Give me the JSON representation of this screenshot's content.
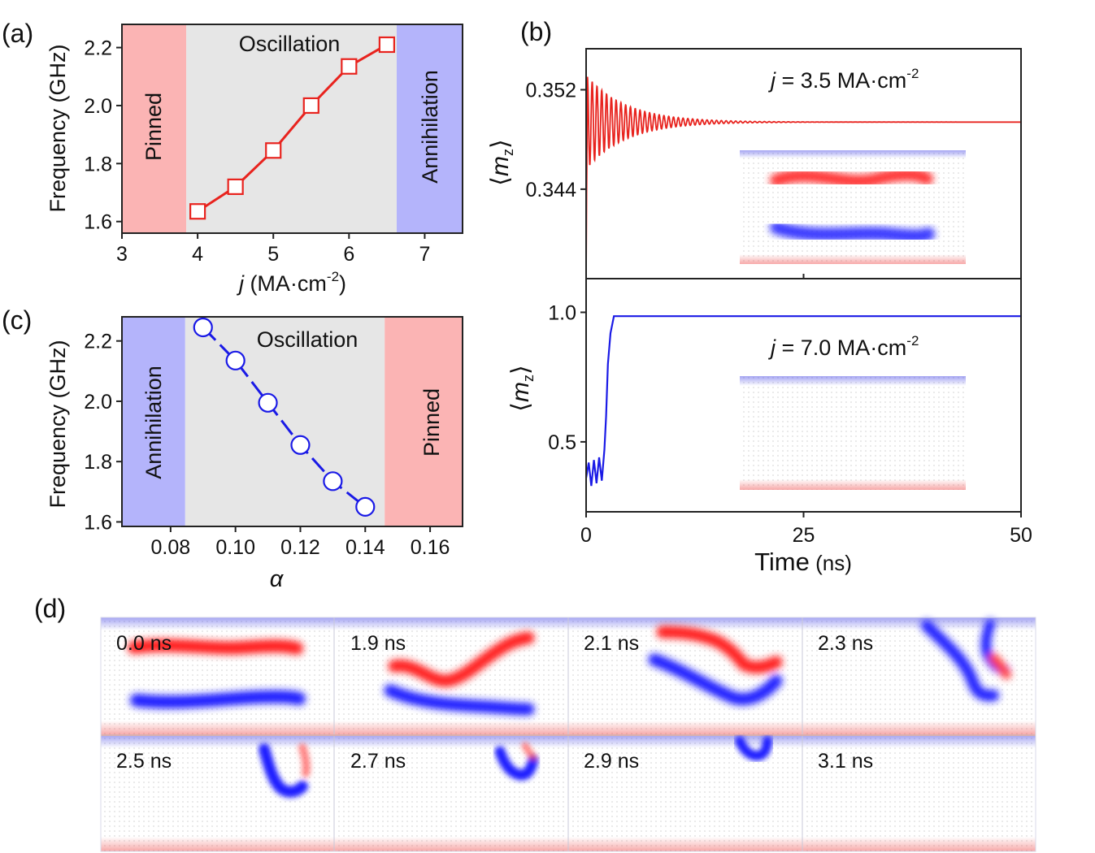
{
  "panels": {
    "a": "(a)",
    "b": "(b)",
    "c": "(c)",
    "d": "(d)"
  },
  "colors": {
    "red": "#e8231e",
    "blue": "#1a1ae6",
    "pinned": "#fbb4b4",
    "annihilation": "#b4b4fb",
    "oscillation": "#e6e6e6"
  },
  "chart_data": [
    {
      "id": "a",
      "type": "line",
      "xlabel_prefix": "j",
      "xlabel_suffix": " (MA·cm",
      "xlabel_exp": "-2",
      "xlabel_close": ")",
      "ylabel": "Frequency (GHz)",
      "x": [
        4,
        4.5,
        5,
        5.5,
        6,
        6.5
      ],
      "y": [
        1.635,
        1.72,
        1.845,
        2.0,
        2.135,
        2.21
      ],
      "xlim": [
        3,
        7.5
      ],
      "ylim": [
        1.56,
        2.28
      ],
      "xticks": [
        "3",
        "4",
        "5",
        "6",
        "7"
      ],
      "yticks": [
        "1.6",
        "1.8",
        "2.0",
        "2.2"
      ],
      "regions": [
        {
          "label": "Pinned",
          "from": 3,
          "to": 3.85
        },
        {
          "label": "Oscillation",
          "from": 3.85,
          "to": 6.63
        },
        {
          "label": "Annihilation",
          "from": 6.63,
          "to": 7.5
        }
      ],
      "marker": "square",
      "color": "red"
    },
    {
      "id": "c",
      "type": "line",
      "xlabel": "α",
      "ylabel": "Frequency (GHz)",
      "x": [
        0.09,
        0.1,
        0.11,
        0.12,
        0.13,
        0.14
      ],
      "y": [
        2.245,
        2.135,
        1.995,
        1.855,
        1.735,
        1.65
      ],
      "xlim": [
        0.065,
        0.17
      ],
      "ylim": [
        1.585,
        2.28
      ],
      "xticks": [
        "0.08",
        "0.10",
        "0.12",
        "0.14",
        "0.16"
      ],
      "yticks": [
        "1.6",
        "1.8",
        "2.0",
        "2.2"
      ],
      "regions": [
        {
          "label": "Annihilation",
          "from": 0.065,
          "to": 0.0845
        },
        {
          "label": "Oscillation",
          "from": 0.0845,
          "to": 0.146
        },
        {
          "label": "Pinned",
          "from": 0.146,
          "to": 0.17
        }
      ],
      "marker": "circle",
      "color": "blue"
    },
    {
      "id": "b_top",
      "type": "line",
      "ylabel": "⟨m_z⟩",
      "annotation_prefix": "j",
      "annotation_suffix": " = 3.5 MA·cm",
      "annotation_exp": "-2",
      "x_ns": [
        0,
        50
      ],
      "ylim": [
        0.3368,
        0.3553
      ],
      "yticks": [
        "0.344",
        "0.352"
      ],
      "series": {
        "name": "j = 3.5",
        "color": "red",
        "equilibrium": 0.3494,
        "start": 0.337,
        "initial_amplitude": 0.0038,
        "decay_ns": 4.5,
        "period_ns": 0.55
      }
    },
    {
      "id": "b_bottom",
      "type": "line",
      "ylabel": "⟨m_z⟩",
      "annotation_prefix": "j",
      "annotation_suffix": " = 7.0 MA·cm",
      "annotation_exp": "-2",
      "xlabel": "Time",
      "xlabel_unit": " (ns)",
      "xlim": [
        0,
        50
      ],
      "ylim": [
        0.23,
        1.13
      ],
      "yticks": [
        "0.5",
        "1.0"
      ],
      "xticks": [
        "0",
        "25",
        "50"
      ],
      "series": {
        "name": "j = 7.0",
        "color": "blue",
        "points": [
          [
            0,
            0.36
          ],
          [
            0.3,
            0.42
          ],
          [
            0.6,
            0.33
          ],
          [
            0.9,
            0.43
          ],
          [
            1.2,
            0.34
          ],
          [
            1.5,
            0.44
          ],
          [
            1.8,
            0.35
          ],
          [
            2.1,
            0.47
          ],
          [
            2.3,
            0.6
          ],
          [
            2.5,
            0.8
          ],
          [
            2.8,
            0.92
          ],
          [
            3.2,
            0.985
          ],
          [
            50,
            0.985
          ]
        ]
      }
    }
  ],
  "snapshots": {
    "row1": [
      "0.0 ns",
      "1.9 ns",
      "2.1 ns",
      "2.3 ns"
    ],
    "row2": [
      "2.5 ns",
      "2.7 ns",
      "2.9 ns",
      "3.1 ns"
    ]
  }
}
